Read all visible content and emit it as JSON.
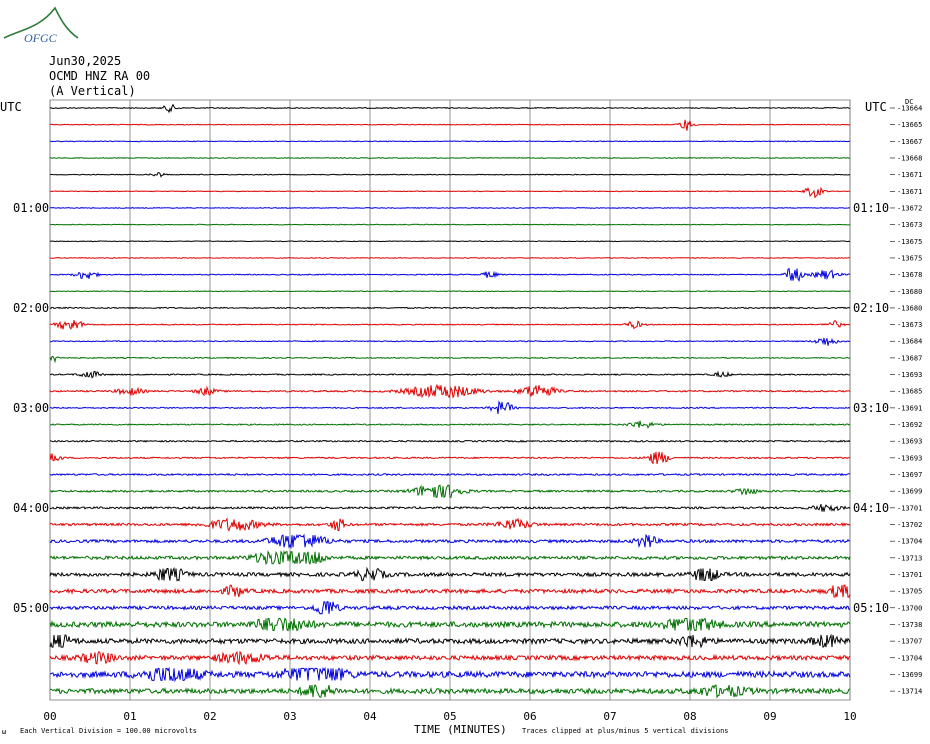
{
  "logo": {
    "text": "OFGC",
    "name": "ofgc-logo"
  },
  "header": {
    "date": "Jun30,2025",
    "station": "OCMD HNZ RA 00",
    "component": "(A Vertical)",
    "utc_left": "UTC",
    "utc_right": "UTC",
    "dc_label": "DC"
  },
  "footer": {
    "xlabel": "TIME (MINUTES)",
    "scale_note": "Each Vertical Division =  100.00 microvolts",
    "clip_note": "Traces clipped at plus/minus 5 vertical divisions",
    "corner_mark": "ω"
  },
  "colors": {
    "black": "#000000",
    "red": "#e00000",
    "blue": "#0000e0",
    "green": "#007000",
    "grid": "#7a7a7a"
  },
  "chart_data": {
    "type": "line",
    "title": "",
    "xlabel": "TIME (MINUTES)",
    "ylabel": "",
    "xlim": [
      0,
      10
    ],
    "x_ticks": [
      "00",
      "01",
      "02",
      "03",
      "04",
      "05",
      "06",
      "07",
      "08",
      "09",
      "10"
    ],
    "grid": true,
    "trace_count": 36,
    "color_cycle": [
      "black",
      "red",
      "blue",
      "green"
    ],
    "left_time_labels": [
      {
        "trace": 6,
        "label": "01:00"
      },
      {
        "trace": 12,
        "label": "02:00"
      },
      {
        "trace": 18,
        "label": "03:00"
      },
      {
        "trace": 24,
        "label": "04:00"
      },
      {
        "trace": 30,
        "label": "05:00"
      }
    ],
    "right_time_labels": [
      {
        "trace": 6,
        "label": "01:10"
      },
      {
        "trace": 12,
        "label": "02:10"
      },
      {
        "trace": 18,
        "label": "03:10"
      },
      {
        "trace": 24,
        "label": "04:10"
      },
      {
        "trace": 30,
        "label": "05:10"
      }
    ],
    "dc_offsets": [
      "-13664",
      "-13665",
      "-13667",
      "-13668",
      "-13671",
      "-13671",
      "-13672",
      "-13673",
      "-13675",
      "-13675",
      "-13678",
      "-13680",
      "-13680",
      "-13673",
      "-13684",
      "-13687",
      "-13693",
      "-13685",
      "-13691",
      "-13692",
      "-13693",
      "-13693",
      "-13697",
      "-13699",
      "-13701",
      "-13702",
      "-13704",
      "-13713",
      "-13701",
      "-13705",
      "-13700",
      "-13738",
      "-13707",
      "-13704",
      "-13699",
      "-13714"
    ],
    "noise_level": [
      0.4,
      0.3,
      0.3,
      0.3,
      0.3,
      0.3,
      0.3,
      0.3,
      0.3,
      0.3,
      0.4,
      0.3,
      0.5,
      0.4,
      0.4,
      0.4,
      0.5,
      0.6,
      0.5,
      0.5,
      0.6,
      0.6,
      0.7,
      0.8,
      0.8,
      1.0,
      1.2,
      1.3,
      1.5,
      1.6,
      1.4,
      2.2,
      2.0,
      1.8,
      2.4,
      2.0
    ],
    "events": [
      {
        "trace": 0,
        "x": 1.5,
        "amp": 3,
        "width": 0.08
      },
      {
        "trace": 1,
        "x": 7.95,
        "amp": 5,
        "width": 0.08
      },
      {
        "trace": 4,
        "x": 1.35,
        "amp": 2,
        "width": 0.08
      },
      {
        "trace": 5,
        "x": 9.55,
        "amp": 5,
        "width": 0.1
      },
      {
        "trace": 10,
        "x": 0.45,
        "amp": 4,
        "width": 0.12
      },
      {
        "trace": 10,
        "x": 5.5,
        "amp": 3,
        "width": 0.08
      },
      {
        "trace": 10,
        "x": 9.3,
        "amp": 10,
        "width": 0.08
      },
      {
        "trace": 10,
        "x": 9.7,
        "amp": 4,
        "width": 0.15
      },
      {
        "trace": 13,
        "x": 0.25,
        "amp": 5,
        "width": 0.15
      },
      {
        "trace": 13,
        "x": 7.3,
        "amp": 3,
        "width": 0.1
      },
      {
        "trace": 13,
        "x": 9.8,
        "amp": 3,
        "width": 0.1
      },
      {
        "trace": 14,
        "x": 9.7,
        "amp": 4,
        "width": 0.12
      },
      {
        "trace": 15,
        "x": 0.05,
        "amp": 3,
        "width": 0.08
      },
      {
        "trace": 16,
        "x": 0.5,
        "amp": 3,
        "width": 0.12
      },
      {
        "trace": 16,
        "x": 8.4,
        "amp": 2,
        "width": 0.1
      },
      {
        "trace": 17,
        "x": 1.0,
        "amp": 3,
        "width": 0.15
      },
      {
        "trace": 17,
        "x": 1.95,
        "amp": 3,
        "width": 0.12
      },
      {
        "trace": 17,
        "x": 4.9,
        "amp": 6,
        "width": 0.4
      },
      {
        "trace": 17,
        "x": 6.1,
        "amp": 6,
        "width": 0.2
      },
      {
        "trace": 18,
        "x": 5.65,
        "amp": 6,
        "width": 0.12
      },
      {
        "trace": 19,
        "x": 7.4,
        "amp": 3,
        "width": 0.15
      },
      {
        "trace": 21,
        "x": 0.05,
        "amp": 4,
        "width": 0.08
      },
      {
        "trace": 21,
        "x": 7.6,
        "amp": 6,
        "width": 0.12
      },
      {
        "trace": 23,
        "x": 4.85,
        "amp": 8,
        "width": 0.25
      },
      {
        "trace": 23,
        "x": 8.7,
        "amp": 3,
        "width": 0.12
      },
      {
        "trace": 24,
        "x": 9.7,
        "amp": 3,
        "width": 0.15
      },
      {
        "trace": 25,
        "x": 2.3,
        "amp": 5,
        "width": 0.3
      },
      {
        "trace": 25,
        "x": 3.6,
        "amp": 6,
        "width": 0.08
      },
      {
        "trace": 25,
        "x": 5.8,
        "amp": 4,
        "width": 0.2
      },
      {
        "trace": 26,
        "x": 3.1,
        "amp": 8,
        "width": 0.3
      },
      {
        "trace": 26,
        "x": 7.45,
        "amp": 8,
        "width": 0.1
      },
      {
        "trace": 27,
        "x": 2.9,
        "amp": 8,
        "width": 0.3
      },
      {
        "trace": 27,
        "x": 3.3,
        "amp": 6,
        "width": 0.12
      },
      {
        "trace": 28,
        "x": 1.5,
        "amp": 8,
        "width": 0.15
      },
      {
        "trace": 28,
        "x": 4.0,
        "amp": 6,
        "width": 0.15
      },
      {
        "trace": 28,
        "x": 8.2,
        "amp": 10,
        "width": 0.12
      },
      {
        "trace": 29,
        "x": 2.3,
        "amp": 5,
        "width": 0.1
      },
      {
        "trace": 29,
        "x": 9.9,
        "amp": 8,
        "width": 0.12
      },
      {
        "trace": 30,
        "x": 3.45,
        "amp": 8,
        "width": 0.12
      },
      {
        "trace": 31,
        "x": 2.9,
        "amp": 10,
        "width": 0.25
      },
      {
        "trace": 31,
        "x": 8.0,
        "amp": 6,
        "width": 0.3
      },
      {
        "trace": 32,
        "x": 0.1,
        "amp": 8,
        "width": 0.15
      },
      {
        "trace": 32,
        "x": 8.05,
        "amp": 6,
        "width": 0.15
      },
      {
        "trace": 32,
        "x": 9.7,
        "amp": 5,
        "width": 0.15
      },
      {
        "trace": 33,
        "x": 0.6,
        "amp": 4,
        "width": 0.2
      },
      {
        "trace": 33,
        "x": 2.4,
        "amp": 4,
        "width": 0.3
      },
      {
        "trace": 34,
        "x": 1.5,
        "amp": 8,
        "width": 0.3
      },
      {
        "trace": 34,
        "x": 3.3,
        "amp": 14,
        "width": 0.3
      },
      {
        "trace": 35,
        "x": 3.35,
        "amp": 10,
        "width": 0.15
      },
      {
        "trace": 35,
        "x": 8.4,
        "amp": 4,
        "width": 0.3
      }
    ]
  }
}
